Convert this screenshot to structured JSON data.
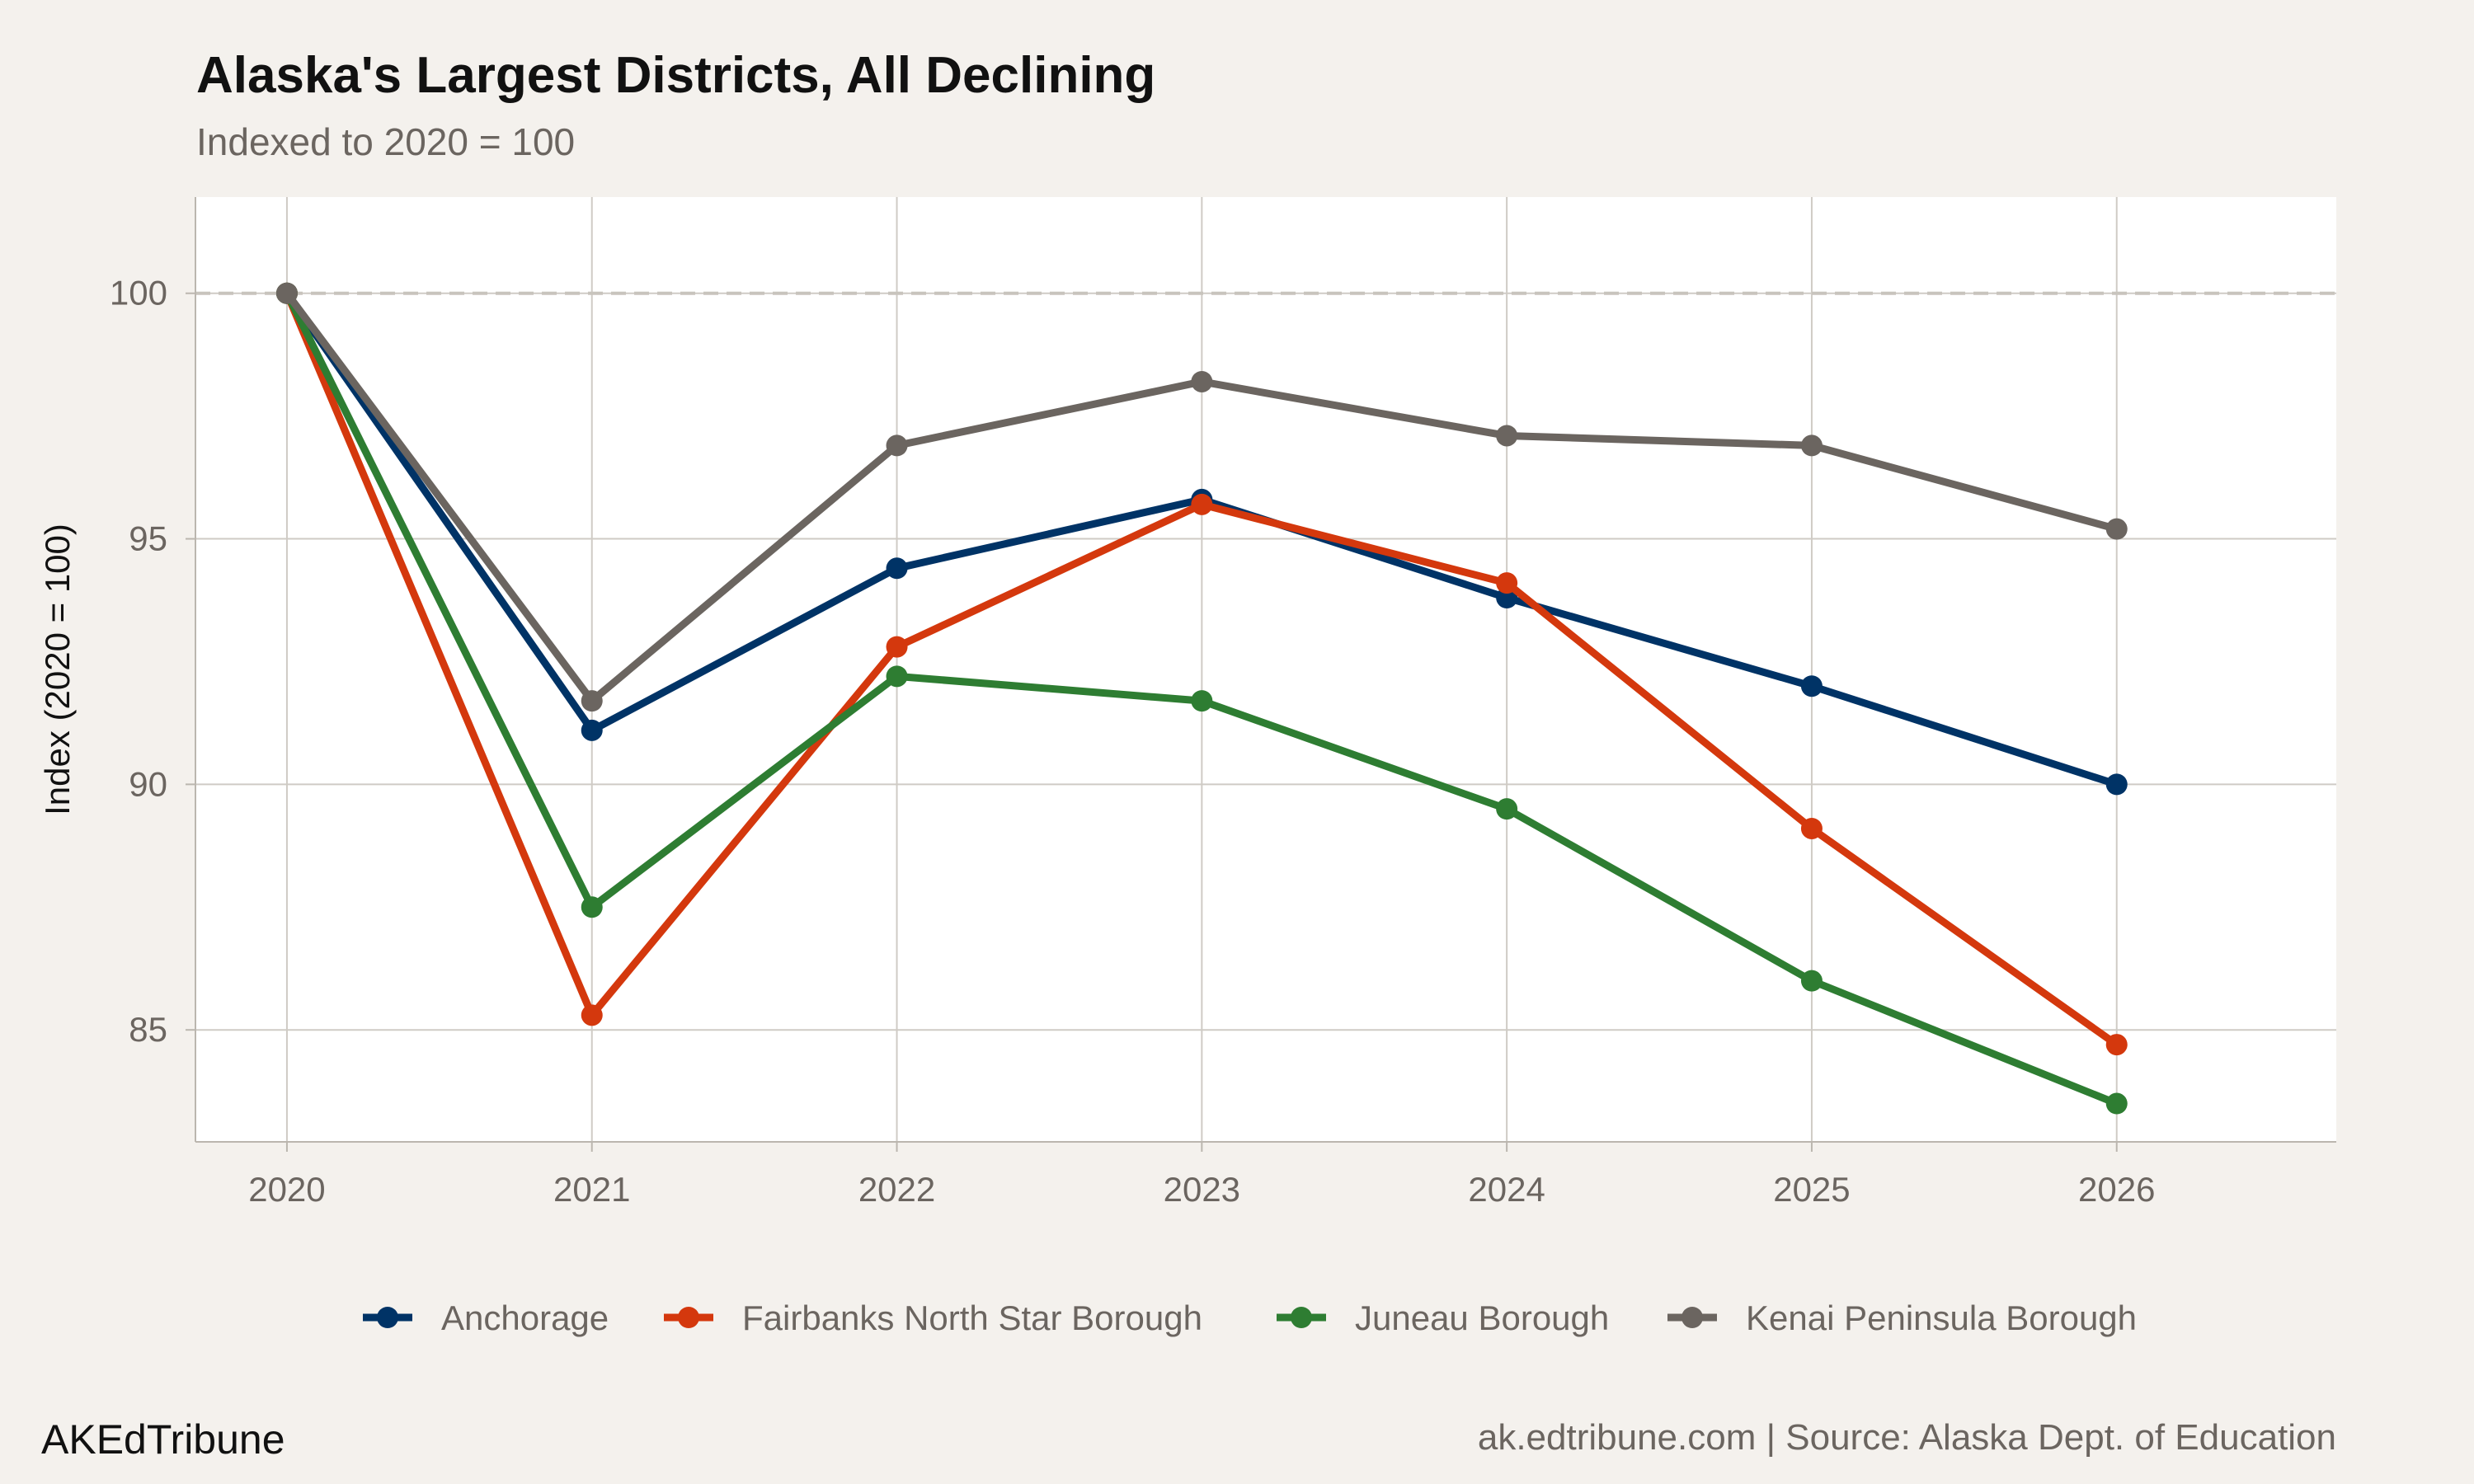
{
  "chart_data": {
    "type": "line",
    "title": "Alaska's Largest Districts, All Declining",
    "subtitle": "Indexed to 2020 = 100",
    "xlabel": "",
    "ylabel": "Index (2020 = 100)",
    "x": [
      2020,
      2021,
      2022,
      2023,
      2024,
      2025,
      2026
    ],
    "x_tick_labels": [
      "2020",
      "2021",
      "2022",
      "2023",
      "2024",
      "2025",
      "2026"
    ],
    "y_ticks": [
      85,
      90,
      95,
      100
    ],
    "y_tick_labels": [
      "85",
      "90",
      "95",
      "100"
    ],
    "xlim": [
      2019.7,
      2026.72
    ],
    "ylim": [
      82.72,
      101.96
    ],
    "reference_line": {
      "y": 100,
      "style": "dashed",
      "color": "#c8c4bd"
    },
    "grid": true,
    "legend_position": "bottom",
    "series": [
      {
        "name": "Anchorage",
        "color": "#003366",
        "values": [
          100,
          91.1,
          94.4,
          95.8,
          93.8,
          92.0,
          90.0
        ]
      },
      {
        "name": "Fairbanks North Star Borough",
        "color": "#d4380d",
        "values": [
          100,
          85.3,
          92.8,
          95.7,
          94.1,
          89.1,
          84.7
        ]
      },
      {
        "name": "Juneau Borough",
        "color": "#2e7d32",
        "values": [
          100,
          87.5,
          92.2,
          91.7,
          89.5,
          86.0,
          83.5
        ]
      },
      {
        "name": "Kenai Peninsula Borough",
        "color": "#6b6560",
        "values": [
          100,
          91.7,
          96.9,
          98.2,
          97.1,
          96.9,
          95.2
        ]
      }
    ]
  },
  "footer": {
    "brand": "AKEdTribune",
    "caption": "ak.edtribune.com | Source: Alaska Dept. of Education"
  }
}
